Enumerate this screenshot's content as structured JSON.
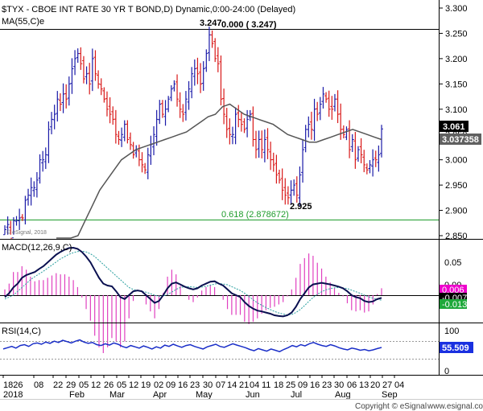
{
  "colors": {
    "background": "#ffffff",
    "bar": "#1a1aa8",
    "bar_down": "#d81818",
    "ma": "#555555",
    "fib": "#1e9c2b",
    "macd_line": "#0a1050",
    "signal_line": "#2aa0a0",
    "hist": "#e040c0",
    "rsi_line": "#1a2ec8",
    "tag_dark": "#000000",
    "tag_gray": "#606060",
    "tag_magenta": "#ee00cc",
    "tag_green": "#1ea83a",
    "tag_blue": "#1a30e0"
  },
  "header": {
    "title": "$TYX - CBOE INT RATE 30 YR T BOND,D) Dynamic,0:00-24:00 (Delayed)",
    "ma_label": "MA(55,C)e",
    "high_label": "3.247",
    "high_value_label": "0.000 ( 3.247)",
    "low_label": "2.925",
    "fib_label": "0.618 (2.878672)",
    "copyright": "© eSignal, 2018"
  },
  "price_panel": {
    "y_ticks": [
      "3.300",
      "3.250",
      "3.200",
      "3.150",
      "3.100",
      "3.050",
      "3.000",
      "2.950",
      "2.900",
      "2.850"
    ],
    "tag_last": "3.061",
    "tag_ma": "3.037358"
  },
  "macd_panel": {
    "label": "MACD(12,26,9,C)",
    "y_ticks": [
      "0.05",
      "0.00"
    ],
    "tag_hist": "0.006",
    "tag_macd": "-0.007",
    "tag_signal": "-0.013"
  },
  "rsi_panel": {
    "label": "RSI(14,C)",
    "y_ticks": [
      "100",
      "50",
      "0"
    ],
    "tag_rsi": "55.509"
  },
  "x_axis": {
    "day_labels": [
      "1826",
      "08",
      "22",
      "29",
      "05",
      "12",
      "26",
      "05",
      "12",
      "19",
      "02",
      "09",
      "16",
      "23",
      "30",
      "07",
      "14",
      "21",
      "04",
      "11",
      "18",
      "25",
      "09",
      "16",
      "23",
      "30",
      "06",
      "13",
      "20",
      "27",
      "04"
    ],
    "month_labels": [
      "2018",
      "Feb",
      "Mar",
      "Apr",
      "May",
      "Jun",
      "Jul",
      "Aug",
      "Sep"
    ]
  },
  "footer": {
    "brand": "Copyright © eSignal",
    "website": "www.esignal.com"
  },
  "chart_data": {
    "type": "ohlc",
    "title": "$TYX - CBOE INT RATE 30 YR T BOND,D) Dynamic,0:00-24:00 (Delayed)",
    "ylim": [
      2.85,
      3.3
    ],
    "annotations": {
      "high": 3.247,
      "low": 2.925,
      "fib_0618": 2.878672,
      "last_close": 3.061,
      "ma55_last": 3.037358
    },
    "close_series": [
      2.862,
      2.872,
      2.845,
      2.88,
      2.88,
      2.885,
      2.885,
      2.92,
      2.93,
      2.945,
      2.945,
      2.96,
      3.0,
      3.0,
      3.01,
      3.06,
      3.08,
      3.09,
      3.12,
      3.11,
      3.13,
      3.12,
      3.15,
      3.18,
      3.2,
      3.21,
      3.19,
      3.16,
      3.17,
      3.15,
      3.2,
      3.17,
      3.15,
      3.14,
      3.12,
      3.1,
      3.09,
      3.08,
      3.05,
      3.04,
      3.05,
      3.07,
      3.04,
      3.03,
      3.01,
      3.02,
      3.0,
      2.99,
      2.98,
      3.01,
      3.03,
      3.05,
      3.08,
      3.11,
      3.09,
      3.1,
      3.12,
      3.14,
      3.15,
      3.12,
      3.1,
      3.09,
      3.12,
      3.14,
      3.17,
      3.18,
      3.17,
      3.15,
      3.18,
      3.21,
      3.247,
      3.23,
      3.2,
      3.19,
      3.12,
      3.09,
      3.06,
      3.05,
      3.05,
      3.09,
      3.08,
      3.07,
      3.06,
      3.08,
      3.09,
      3.04,
      3.02,
      3.04,
      3.02,
      3.04,
      3.02,
      3.0,
      2.99,
      2.97,
      2.96,
      2.94,
      2.93,
      2.925,
      2.94,
      2.95,
      2.93,
      2.97,
      3.02,
      3.06,
      3.07,
      3.06,
      3.1,
      3.09,
      3.11,
      3.13,
      3.12,
      3.1,
      3.1,
      3.12,
      3.09,
      3.06,
      3.05,
      3.06,
      3.02,
      3.04,
      3.0,
      3.02,
      3.01,
      2.99,
      2.98,
      2.99,
      3.0,
      3.0,
      3.01,
      3.061
    ],
    "ma55_series": [
      2.78,
      2.8,
      2.83,
      2.85,
      2.88,
      2.91,
      2.94,
      2.96,
      2.98,
      3.0,
      3.01,
      3.02,
      3.025,
      3.03,
      3.035,
      3.04,
      3.045,
      3.05,
      3.055,
      3.065,
      3.075,
      3.085,
      3.09,
      3.105,
      3.11,
      3.1,
      3.09,
      3.085,
      3.08,
      3.075,
      3.07,
      3.06,
      3.05,
      3.045,
      3.04,
      3.035,
      3.035,
      3.04,
      3.045,
      3.05,
      3.055,
      3.06,
      3.055,
      3.05,
      3.045,
      3.04
    ],
    "macd_series": [
      -0.005,
      0.005,
      0.02,
      0.03,
      0.045,
      0.052,
      0.056,
      0.06,
      0.068,
      0.075,
      0.085,
      0.095,
      0.105,
      0.112,
      0.118,
      0.122,
      0.123,
      0.12,
      0.112,
      0.1,
      0.085,
      0.065,
      0.045,
      0.03,
      0.025,
      0.023,
      0.01,
      -0.005,
      -0.01,
      0.0,
      0.01,
      0.012,
      0.01,
      0.0,
      -0.01,
      -0.02,
      -0.015,
      0.0,
      0.018,
      0.03,
      0.033,
      0.028,
      0.022,
      0.018,
      0.015,
      0.018,
      0.025,
      0.03,
      0.035,
      0.036,
      0.03,
      0.025,
      0.015,
      0.005,
      0.0,
      -0.005,
      -0.018,
      -0.028,
      -0.035,
      -0.04,
      -0.042,
      -0.045,
      -0.048,
      -0.052,
      -0.054,
      -0.055,
      -0.052,
      -0.045,
      -0.03,
      -0.01,
      0.005,
      0.02,
      0.028,
      0.03,
      0.032,
      0.03,
      0.028,
      0.025,
      0.022,
      0.018,
      0.01,
      0.0,
      -0.005,
      -0.008,
      -0.015,
      -0.018,
      -0.016,
      -0.01,
      -0.007
    ],
    "signal_series": [
      -0.01,
      -0.005,
      0.0,
      0.01,
      0.02,
      0.03,
      0.04,
      0.048,
      0.055,
      0.062,
      0.07,
      0.078,
      0.086,
      0.094,
      0.1,
      0.106,
      0.11,
      0.113,
      0.114,
      0.112,
      0.107,
      0.1,
      0.09,
      0.08,
      0.07,
      0.06,
      0.05,
      0.04,
      0.03,
      0.02,
      0.015,
      0.012,
      0.01,
      0.008,
      0.004,
      0.0,
      -0.003,
      -0.002,
      0.002,
      0.008,
      0.015,
      0.02,
      0.022,
      0.022,
      0.021,
      0.02,
      0.021,
      0.023,
      0.026,
      0.029,
      0.03,
      0.029,
      0.027,
      0.022,
      0.017,
      0.012,
      0.005,
      -0.003,
      -0.012,
      -0.02,
      -0.026,
      -0.032,
      -0.037,
      -0.042,
      -0.046,
      -0.049,
      -0.051,
      -0.05,
      -0.045,
      -0.037,
      -0.027,
      -0.016,
      -0.006,
      0.002,
      0.009,
      0.014,
      0.017,
      0.019,
      0.02,
      0.019,
      0.017,
      0.013,
      0.009,
      0.005,
      0.0,
      -0.004,
      -0.008,
      -0.011,
      -0.013
    ],
    "rsi_series": [
      52,
      55,
      58,
      54,
      60,
      62,
      58,
      64,
      66,
      63,
      68,
      65,
      70,
      67,
      72,
      69,
      66,
      70,
      73,
      68,
      65,
      67,
      62,
      60,
      64,
      61,
      66,
      63,
      58,
      55,
      60,
      57,
      54,
      59,
      56,
      52,
      57,
      54,
      61,
      58,
      63,
      59,
      56,
      60,
      62,
      58,
      55,
      52,
      57,
      60,
      63,
      58,
      56,
      60,
      64,
      61,
      58,
      55,
      51,
      48,
      53,
      50,
      47,
      52,
      49,
      46,
      51,
      55,
      60,
      57,
      62,
      59,
      64,
      67,
      63,
      60,
      58,
      62,
      59,
      55,
      52,
      50,
      54,
      52,
      49,
      51,
      48,
      50,
      53,
      55.509
    ]
  }
}
